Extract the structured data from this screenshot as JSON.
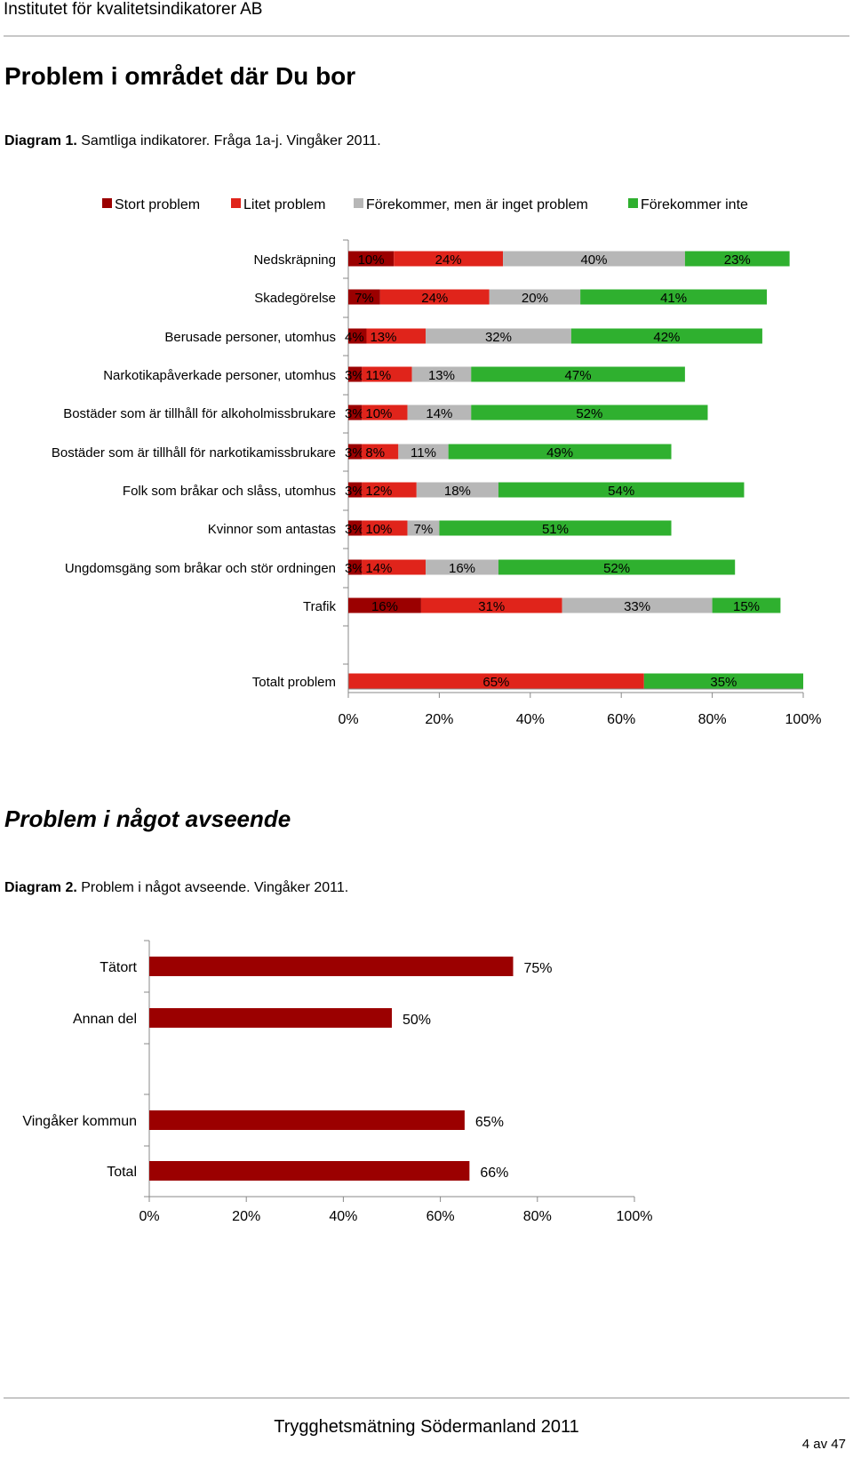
{
  "header": {
    "org": "Institutet för kvalitetsindikatorer AB"
  },
  "section1": {
    "title": "Problem i området där Du bor",
    "caption_bold": "Diagram 1.",
    "caption_rest": " Samtliga indikatorer. Fråga 1a-j. Vingåker 2011."
  },
  "section2": {
    "title": "Problem i något avseende",
    "caption_bold": "Diagram 2.",
    "caption_rest": " Problem i något avseende. Vingåker 2011."
  },
  "footer": {
    "text": "Trygghetsmätning Södermanland 2011",
    "page": "4 av 47"
  },
  "chart_data": [
    {
      "type": "bar",
      "orientation": "horizontal",
      "stacked": true,
      "series": [
        {
          "name": "Stort problem",
          "color": "#9b0000"
        },
        {
          "name": "Litet problem",
          "color": "#e0241b"
        },
        {
          "name": "Förekommer, men är inget problem",
          "color": "#b7b7b7"
        },
        {
          "name": "Förekommer inte",
          "color": "#2fb02f"
        }
      ],
      "categories": [
        {
          "label": "Nedskräpning",
          "values": [
            10,
            24,
            40,
            23
          ]
        },
        {
          "label": "Skadegörelse",
          "values": [
            7,
            24,
            20,
            41
          ]
        },
        {
          "label": "Berusade personer, utomhus",
          "values": [
            4,
            13,
            32,
            42
          ]
        },
        {
          "label": "Narkotikapåverkade personer, utomhus",
          "values": [
            3,
            11,
            13,
            47
          ]
        },
        {
          "label": "Bostäder som är tillhåll för alkoholmissbrukare",
          "values": [
            3,
            10,
            14,
            52
          ]
        },
        {
          "label": "Bostäder som är tillhåll för narkotikamissbrukare",
          "values": [
            3,
            8,
            11,
            49
          ]
        },
        {
          "label": "Folk som bråkar och slåss, utomhus",
          "values": [
            3,
            12,
            18,
            54
          ]
        },
        {
          "label": "Kvinnor som antastas",
          "values": [
            3,
            10,
            7,
            51
          ]
        },
        {
          "label": "Ungdomsgäng som bråkar och stör ordningen",
          "values": [
            3,
            14,
            16,
            52
          ]
        },
        {
          "label": "Trafik",
          "values": [
            16,
            31,
            33,
            15
          ]
        }
      ],
      "total": {
        "label": "Totalt problem",
        "values": [
          65,
          35
        ],
        "colors": [
          "#e0241b",
          "#2fb02f"
        ]
      },
      "xlim": [
        0,
        100
      ],
      "xticks": [
        "0%",
        "20%",
        "40%",
        "60%",
        "80%",
        "100%"
      ],
      "legend_position": "top"
    },
    {
      "type": "bar",
      "orientation": "horizontal",
      "categories": [
        "Tätort",
        "Annan del",
        "Vingåker kommun",
        "Total"
      ],
      "values": [
        75,
        50,
        65,
        66
      ],
      "value_labels": [
        "75%",
        "50%",
        "65%",
        "66%"
      ],
      "color": "#9b0000",
      "xlim": [
        0,
        100
      ],
      "xticks": [
        "0%",
        "20%",
        "40%",
        "60%",
        "80%",
        "100%"
      ]
    }
  ]
}
